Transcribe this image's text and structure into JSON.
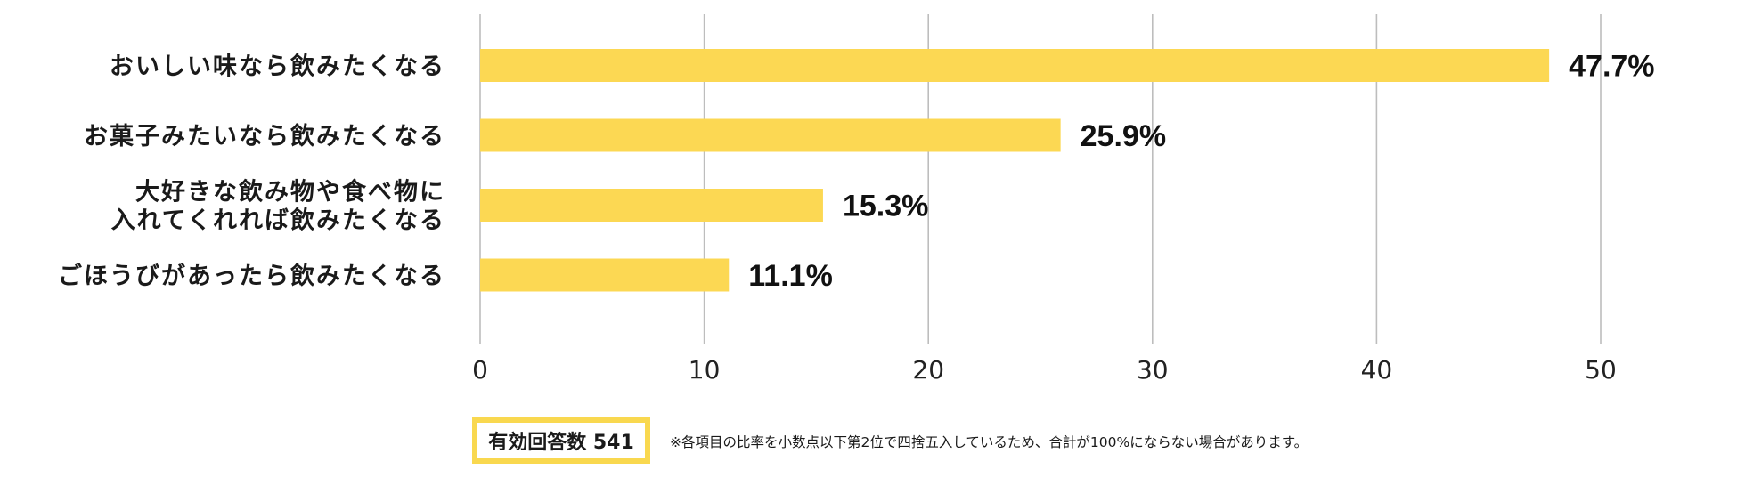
{
  "chart_data": {
    "type": "bar",
    "orientation": "horizontal",
    "categories": [
      [
        "おいしい味なら飲みたくなる"
      ],
      [
        "お菓子みたいなら飲みたくなる"
      ],
      [
        "大好きな飲み物や食べ物に",
        "入れてくれれば飲みたくなる"
      ],
      [
        "ごほうびがあったら飲みたくなる"
      ]
    ],
    "values": [
      47.7,
      25.9,
      15.3,
      11.1
    ],
    "value_labels": [
      "47.7%",
      "25.9%",
      "15.3%",
      "11.1%"
    ],
    "xlim": [
      0,
      50
    ],
    "x_ticks": [
      0,
      10,
      20,
      30,
      40,
      50
    ],
    "x_tick_labels": [
      "0",
      "10",
      "20",
      "30",
      "40",
      "50"
    ],
    "grid": "vertical",
    "bar_color": "#fcd853",
    "grid_color": "#bdbdbd"
  },
  "footer": {
    "sample_label": "有効回答数 541",
    "sample_border_color": "#f9d84f",
    "note": "※各項目の比率を小数点以下第2位で四捨五入しているため、合計が100%にならない場合があります。"
  }
}
